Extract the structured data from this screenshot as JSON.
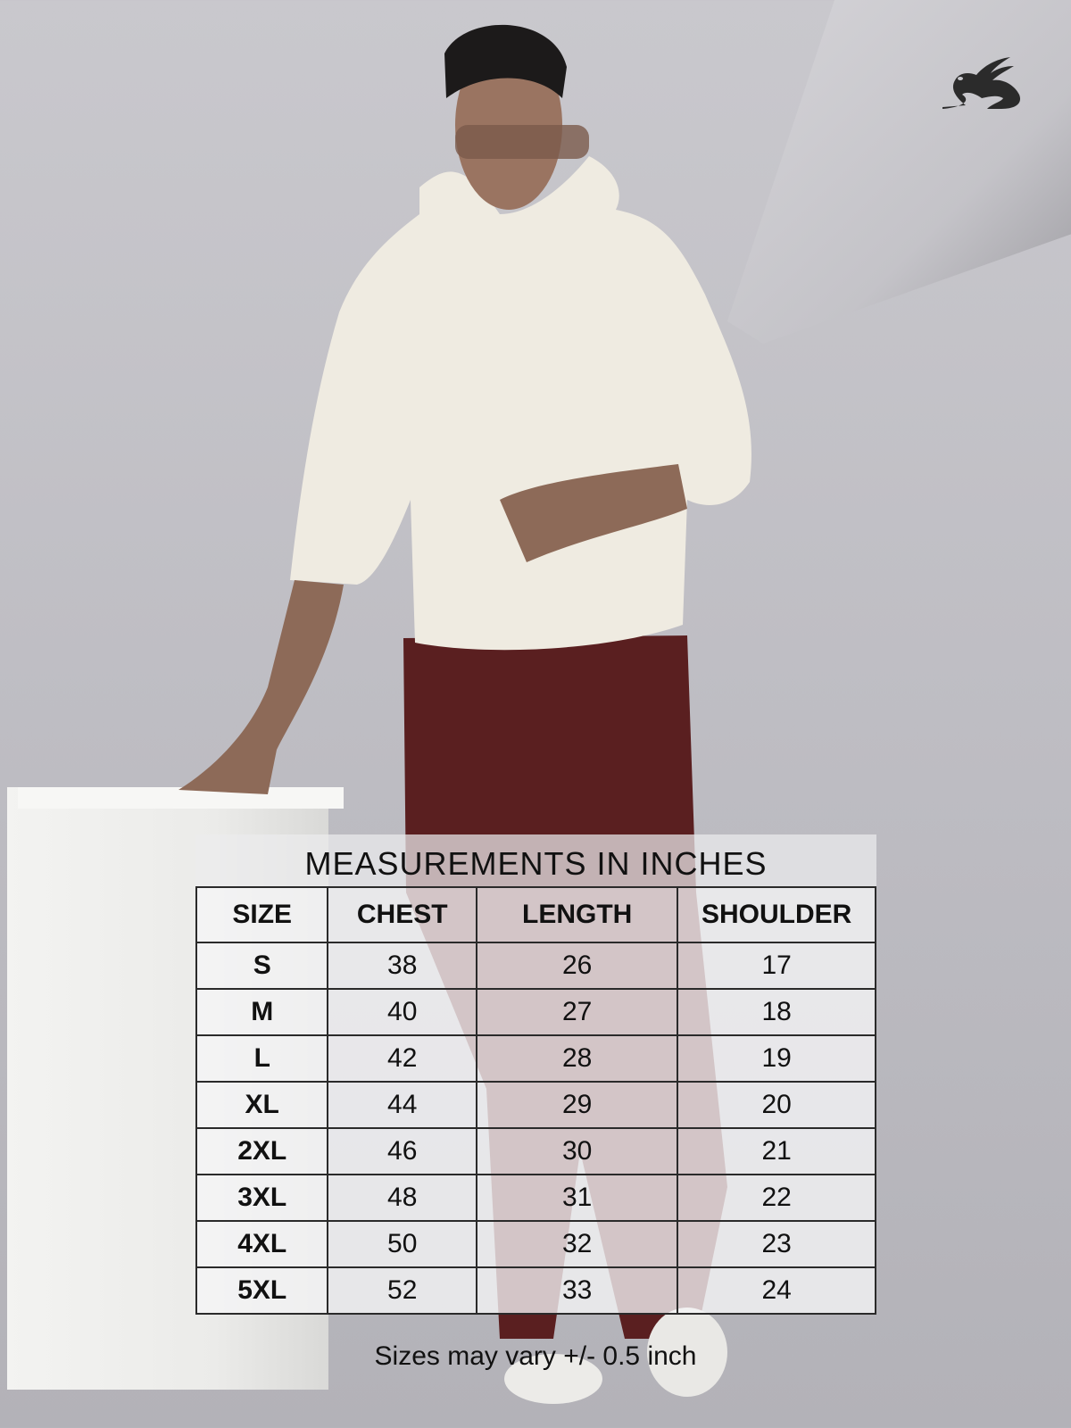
{
  "brand": {
    "logo": "rabbit-logo",
    "colors": {
      "logo": "#2b2b2b",
      "hoodie": "#efebe1",
      "pants": "#5a1f20"
    }
  },
  "size_chart": {
    "title": "MEASUREMENTS IN INCHES",
    "headers": [
      "SIZE",
      "CHEST",
      "LENGTH",
      "SHOULDER"
    ],
    "rows": [
      [
        "S",
        "38",
        "26",
        "17"
      ],
      [
        "M",
        "40",
        "27",
        "18"
      ],
      [
        "L",
        "42",
        "28",
        "19"
      ],
      [
        "XL",
        "44",
        "29",
        "20"
      ],
      [
        "2XL",
        "46",
        "30",
        "21"
      ],
      [
        "3XL",
        "48",
        "31",
        "22"
      ],
      [
        "4XL",
        "50",
        "32",
        "23"
      ],
      [
        "5XL",
        "52",
        "33",
        "24"
      ]
    ],
    "note": "Sizes may vary +/- 0.5 inch"
  }
}
